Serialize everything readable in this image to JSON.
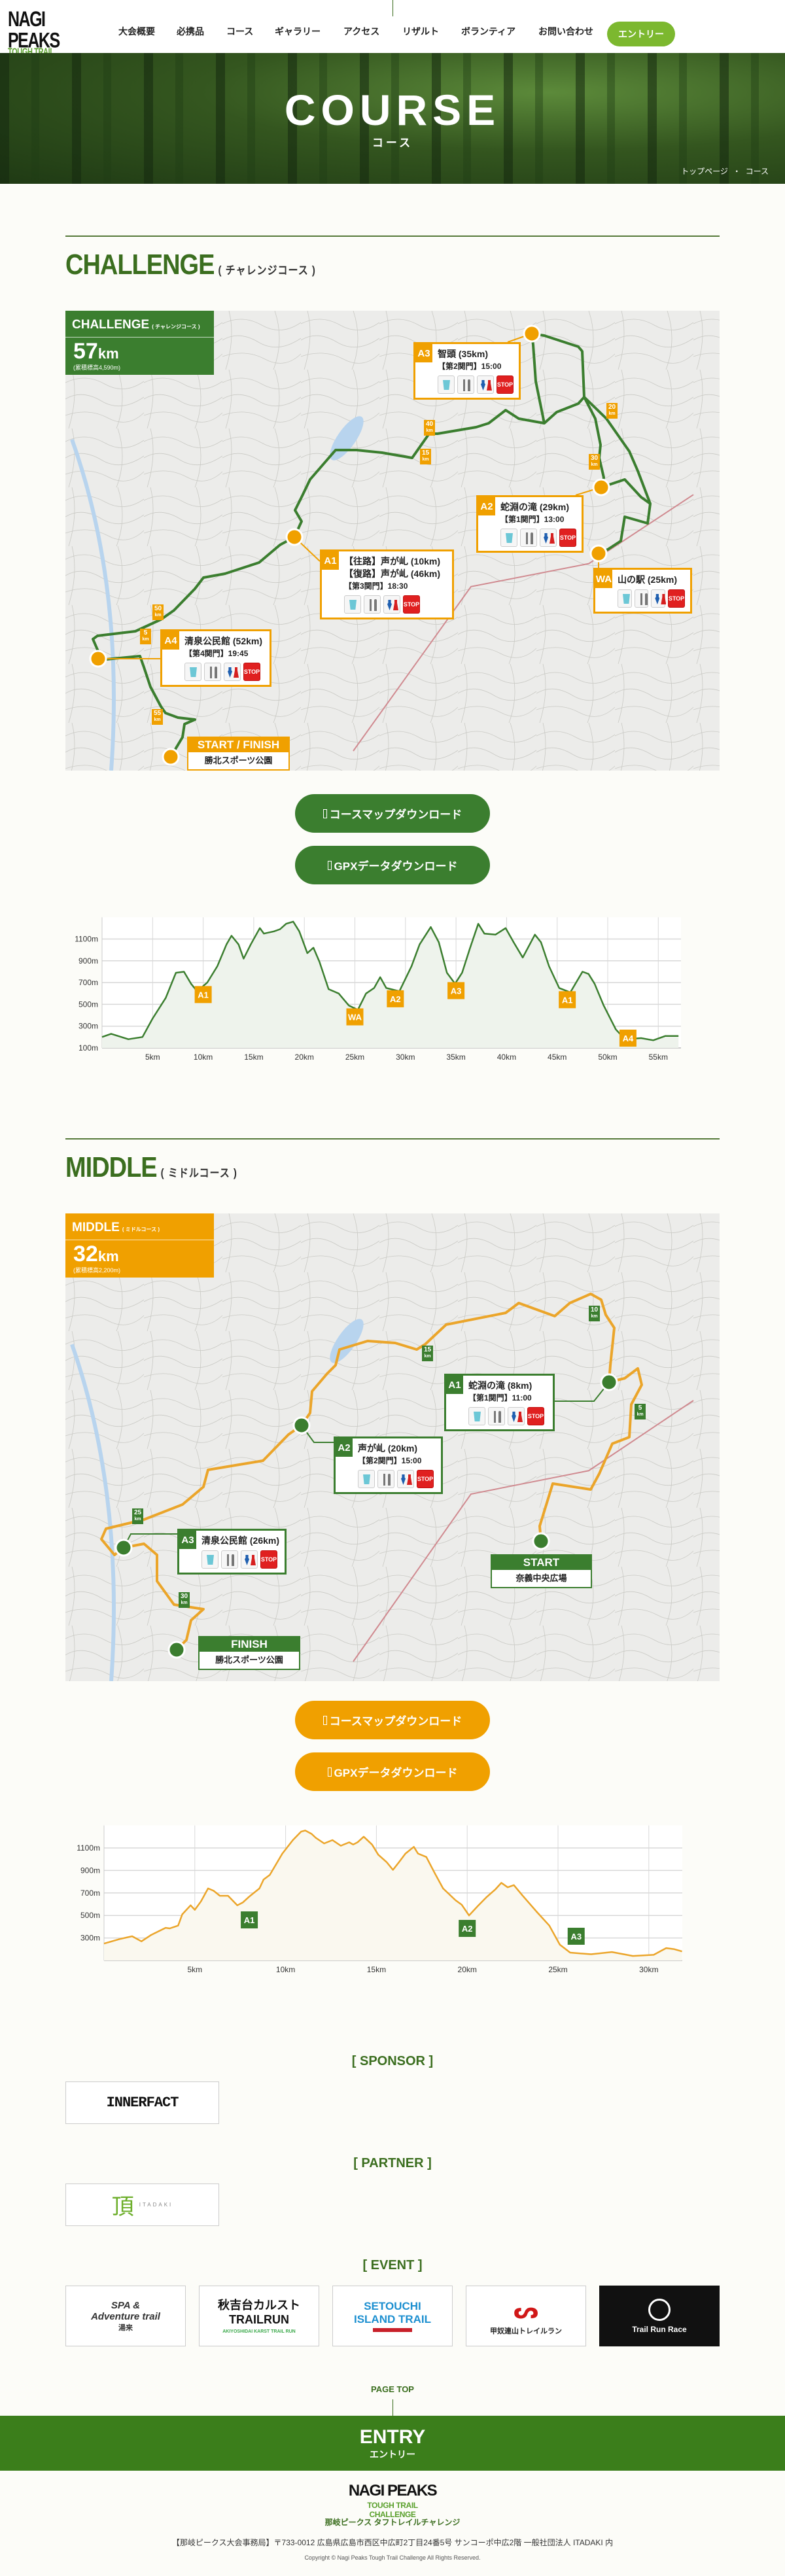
{
  "header": {
    "logo": {
      "main": "NAGI PEAKS",
      "sub": "TOUGH TRAIL CHALLENGE"
    },
    "nav": [
      "大会概要",
      "必携品",
      "コース",
      "ギャラリー",
      "アクセス",
      "リザルト",
      "ボランティア",
      "お問い合わせ"
    ],
    "entry_label": "エントリー"
  },
  "hero": {
    "title": "COURSE",
    "subtitle": "コース",
    "breadcrumb": [
      "トップページ",
      "・",
      "コース"
    ]
  },
  "colors": {
    "green": "#3b7e2f",
    "orange": "#f0a000",
    "nav_entry": "#7cb82f",
    "title_green": "#3b6e1f",
    "stop_red": "#e02020"
  },
  "icons": {
    "water": "water-cup-icon",
    "food": "fork-knife-icon",
    "toilet": "restroom-icon",
    "stop": "stop-sign-icon",
    "download": "download-icon"
  },
  "stop_label": "STOP",
  "courses": {
    "challenge": {
      "title": "CHALLENGE",
      "subtitle": "( チャレンジコース )",
      "summary": {
        "name": "CHALLENGE",
        "sub": "( チャレンジコース )",
        "distance": "57",
        "unit": "km",
        "elevation": "(累積標高4,590m)"
      },
      "aid_stations": [
        {
          "id": "A3",
          "name": "智頭 (35km)",
          "lines": [
            "【第2関門】15:00"
          ],
          "icons": [
            "water",
            "food",
            "toilet",
            "stop"
          ]
        },
        {
          "id": "A2",
          "name": "蛇淵の滝 (29km)",
          "lines": [
            "【第1関門】13:00"
          ],
          "icons": [
            "water",
            "food",
            "toilet",
            "stop"
          ]
        },
        {
          "id": "WA",
          "name": "山の駅 (25km)",
          "lines": [],
          "icons": [
            "water",
            "food",
            "toilet",
            "stop"
          ]
        },
        {
          "id": "A1",
          "name": "【往路】声が乢 (10km)",
          "lines": [
            "【復路】声が乢 (46km)",
            "【第3関門】18:30"
          ],
          "icons": [
            "water",
            "food",
            "toilet",
            "stop"
          ]
        },
        {
          "id": "A4",
          "name": "清泉公民館 (52km)",
          "lines": [
            "【第4関門】19:45"
          ],
          "icons": [
            "water",
            "food",
            "toilet",
            "stop"
          ]
        }
      ],
      "start_finish": [
        {
          "label": "START / FINISH",
          "place": "勝北スポーツ公園"
        }
      ],
      "km_markers": [
        "40",
        "15",
        "20",
        "30",
        "50",
        "5",
        "55"
      ],
      "km_unit": "km",
      "buttons": {
        "map": "コースマップダウンロード",
        "gpx": "GPXデータダウンロード"
      }
    },
    "middle": {
      "title": "MIDDLE",
      "subtitle": "( ミドルコース )",
      "summary": {
        "name": "MIDDLE",
        "sub": "( ミドルコース )",
        "distance": "32",
        "unit": "km",
        "elevation": "(累積標高2,200m)"
      },
      "aid_stations": [
        {
          "id": "A1",
          "name": "蛇淵の滝 (8km)",
          "lines": [
            "【第1関門】11:00"
          ],
          "icons": [
            "water",
            "food",
            "toilet",
            "stop"
          ]
        },
        {
          "id": "A2",
          "name": "声が乢 (20km)",
          "lines": [
            "【第2関門】15:00"
          ],
          "icons": [
            "water",
            "food",
            "toilet",
            "stop"
          ]
        },
        {
          "id": "A3",
          "name": "清泉公民館 (26km)",
          "lines": [],
          "icons": [
            "water",
            "food",
            "toilet",
            "stop"
          ]
        }
      ],
      "start_finish": [
        {
          "label": "START",
          "place": "奈義中央広場"
        },
        {
          "label": "FINISH",
          "place": "勝北スポーツ公園"
        }
      ],
      "km_markers": [
        "10",
        "15",
        "5",
        "25",
        "30"
      ],
      "km_unit": "km",
      "buttons": {
        "map": "コースマップダウンロード",
        "gpx": "GPXデータダウンロード"
      }
    }
  },
  "chart_data": [
    {
      "type": "area",
      "title": "",
      "xlabel": "",
      "ylabel": "",
      "xlim": [
        0,
        57
      ],
      "ylim": [
        100,
        1300
      ],
      "x_ticks": [
        5,
        10,
        15,
        20,
        25,
        30,
        35,
        40,
        45,
        50,
        55
      ],
      "x_tick_suffix": "km",
      "y_ticks": [
        100,
        300,
        500,
        700,
        900,
        1100
      ],
      "y_tick_suffix": "m",
      "grid": true,
      "line_color": "#3b7e2f",
      "x": [
        0,
        0.9,
        2.6,
        4.0,
        5.0,
        6.3,
        7.3,
        8.1,
        8.8,
        9.4,
        10.4,
        11.4,
        12.3,
        12.8,
        13.5,
        14.0,
        14.7,
        15.6,
        16.0,
        17.0,
        17.6,
        18.2,
        18.9,
        19.5,
        20.3,
        20.9,
        21.5,
        22.4,
        23.4,
        24.4,
        25.3,
        26.1,
        26.9,
        27.5,
        28.1,
        29.4,
        30.6,
        31.4,
        32.5,
        33.3,
        34.1,
        34.9,
        35.6,
        36.4,
        37.2,
        37.8,
        38.9,
        39.9,
        40.7,
        41.6,
        42.8,
        43.4,
        44.2,
        45.2,
        46.3,
        47.5,
        48.1,
        48.7,
        49.6,
        50.8,
        51.7,
        53.3,
        54.5,
        55.7,
        57.0
      ],
      "y": [
        200,
        230,
        180,
        200,
        370,
        560,
        790,
        800,
        690,
        620,
        700,
        850,
        1050,
        1130,
        1050,
        920,
        1050,
        1200,
        1150,
        1170,
        1190,
        1240,
        1260,
        1170,
        970,
        1020,
        890,
        640,
        600,
        490,
        450,
        600,
        650,
        750,
        650,
        620,
        850,
        1050,
        1210,
        1070,
        790,
        690,
        790,
        1020,
        1240,
        1150,
        1140,
        1200,
        1070,
        930,
        1140,
        1070,
        850,
        650,
        610,
        800,
        780,
        690,
        490,
        270,
        180,
        190,
        170,
        210,
        210
      ],
      "markers": [
        {
          "label": "A1",
          "x": 10
        },
        {
          "label": "WA",
          "x": 25
        },
        {
          "label": "A2",
          "x": 29
        },
        {
          "label": "A3",
          "x": 35
        },
        {
          "label": "A1",
          "x": 46
        },
        {
          "label": "A4",
          "x": 52
        }
      ],
      "marker_color": "#f0a000"
    },
    {
      "type": "area",
      "title": "",
      "xlabel": "",
      "ylabel": "",
      "xlim": [
        0,
        32
      ],
      "ylim": [
        100,
        1300
      ],
      "x_ticks": [
        5,
        10,
        15,
        20,
        25,
        30
      ],
      "x_tick_suffix": "km",
      "y_ticks": [
        300,
        500,
        700,
        900,
        1100
      ],
      "y_tick_suffix": "m",
      "grid": true,
      "line_color": "#eba52a",
      "x": [
        0,
        0.86,
        1.55,
        2.06,
        2.58,
        3.39,
        3.62,
        4.08,
        4.31,
        4.77,
        5.0,
        5.34,
        5.73,
        6.03,
        6.38,
        6.83,
        7.34,
        7.64,
        7.98,
        8.56,
        8.79,
        9.13,
        9.82,
        10.4,
        10.85,
        11.08,
        11.43,
        11.66,
        12.12,
        12.58,
        13.04,
        13.5,
        13.72,
        13.96,
        14.3,
        14.76,
        15.1,
        15.56,
        15.91,
        16.25,
        16.6,
        17.06,
        17.29,
        17.75,
        18.2,
        18.67,
        19.36,
        19.7,
        20.1,
        20.62,
        21.08,
        21.54,
        21.88,
        22.23,
        22.57,
        23.03,
        23.84,
        24.52,
        25.1,
        25.67,
        26.82,
        27.97,
        29.12,
        30.27,
        30.96,
        31.41,
        31.83
      ],
      "y": [
        250,
        290,
        315,
        270,
        325,
        390,
        385,
        410,
        510,
        590,
        550,
        625,
        740,
        720,
        675,
        675,
        590,
        615,
        665,
        740,
        820,
        860,
        1050,
        1170,
        1245,
        1255,
        1225,
        1190,
        1140,
        1170,
        1120,
        1150,
        1130,
        1150,
        1200,
        1130,
        1040,
        975,
        905,
        975,
        1050,
        1110,
        1050,
        1020,
        880,
        740,
        635,
        595,
        500,
        590,
        665,
        730,
        790,
        750,
        770,
        680,
        530,
        410,
        240,
        170,
        155,
        175,
        140,
        150,
        210,
        200,
        180
      ],
      "markers": [
        {
          "label": "A1",
          "x": 8
        },
        {
          "label": "A2",
          "x": 20
        },
        {
          "label": "A3",
          "x": 26
        }
      ],
      "marker_color": "#3b7e2f"
    }
  ],
  "sponsor": {
    "heading": "[ SPONSOR ]",
    "logos": [
      {
        "text": "INNERFACT"
      }
    ]
  },
  "partner": {
    "heading": "[ PARTNER ]",
    "logos": [
      {
        "text": "頂",
        "sub": "ITADAKI"
      }
    ]
  },
  "event": {
    "heading": "[ EVENT ]",
    "logos": [
      {
        "text": "SPA & Adventure trail",
        "sub": "湯来"
      },
      {
        "text": "秋吉台カルスト TRAILRUN",
        "sub": "AKIYOSHIDAI KARST TRAIL RUN"
      },
      {
        "text": "SETOUCHI ISLAND TRAIL",
        "sub": ""
      },
      {
        "text": "甲奴連山トレイルラン",
        "sub": ""
      },
      {
        "text": "Trail Run Race",
        "sub": ""
      }
    ]
  },
  "page_top": "PAGE TOP",
  "entry_band": {
    "title": "ENTRY",
    "subtitle": "エントリー"
  },
  "footer": {
    "logo": {
      "main": "NAGI PEAKS",
      "sub": "TOUGH TRAIL CHALLENGE"
    },
    "name_ja": "那岐ピークス タフトレイルチャレンジ",
    "address": "【那岐ピークス大会事務局】〒733-0012 広島県広島市西区中広町2丁目24番5号 サンコーポ中広2階 一般社団法人 ITADAKI 内",
    "copyright": "Copyright © Nagi Peaks Tough Trail Challenge All Rights Reserved."
  }
}
